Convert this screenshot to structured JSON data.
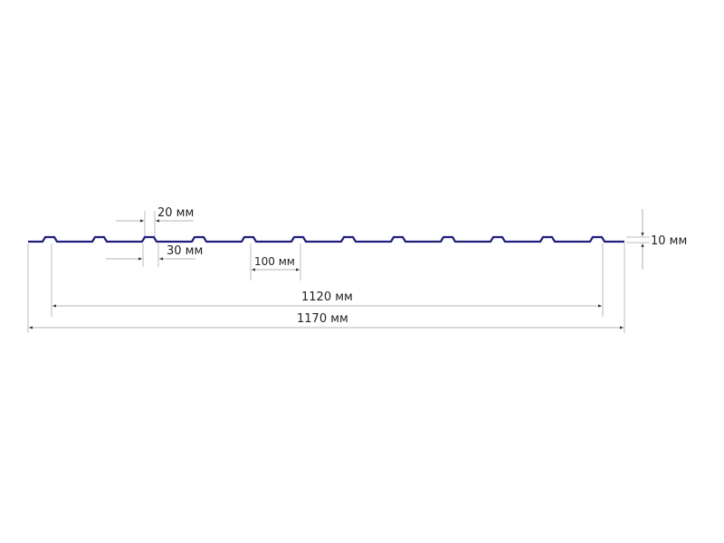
{
  "colors": {
    "profile": "#1f1f7a",
    "extension_lines": "#bdbdbd",
    "text": "#222222"
  },
  "profile": {
    "rib_count": 12
  },
  "dimensions": {
    "rib_top": "20 мм",
    "rib_base": "30 мм",
    "rib_pitch": "100 мм",
    "height": "10 мм",
    "useful_width": "1120 мм",
    "total_width": "1170 мм"
  }
}
